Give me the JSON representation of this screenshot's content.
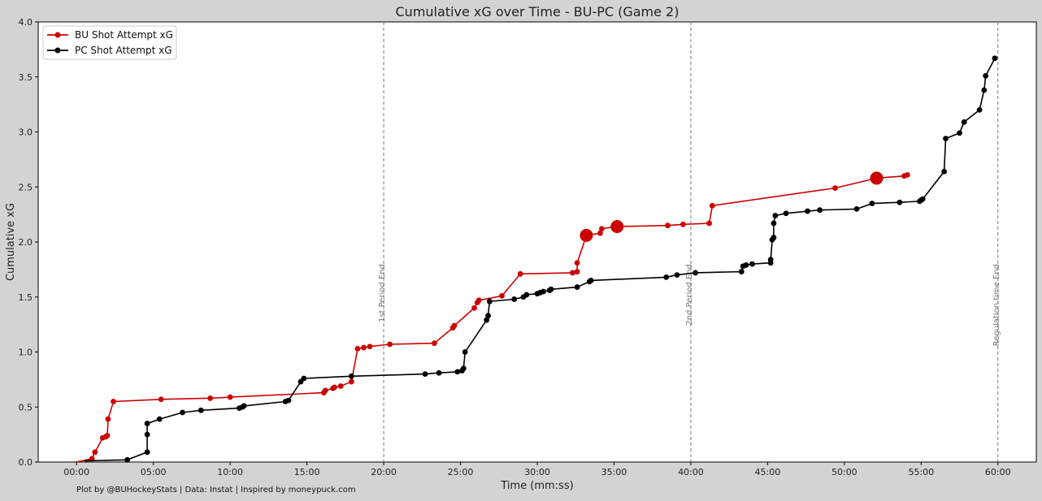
{
  "chart_data": {
    "type": "line",
    "title": "Cumulative xG over Time - BU-PC (Game 2)",
    "xlabel": "Time (mm:ss)",
    "ylabel": "Cumulative xG",
    "xlim": [
      -2.5,
      62.5
    ],
    "ylim": [
      0,
      4.0
    ],
    "x_ticks": [
      0,
      5,
      10,
      15,
      20,
      25,
      30,
      35,
      40,
      45,
      50,
      55,
      60
    ],
    "x_tick_labels": [
      "00:00",
      "05:00",
      "10:00",
      "15:00",
      "20:00",
      "25:00",
      "30:00",
      "35:00",
      "40:00",
      "45:00",
      "50:00",
      "55:00",
      "60:00"
    ],
    "y_ticks": [
      0,
      0.5,
      1.0,
      1.5,
      2.0,
      2.5,
      3.0,
      3.5,
      4.0
    ],
    "y_tick_labels": [
      "0.0",
      "0.5",
      "1.0",
      "1.5",
      "2.0",
      "2.5",
      "3.0",
      "3.5",
      "4.0"
    ],
    "grid": false,
    "legend_position": "top-left",
    "period_markers": [
      {
        "x": 20,
        "label": "1st Period End"
      },
      {
        "x": 40,
        "label": "2nd Period End"
      },
      {
        "x": 60,
        "label": "Regulation time End"
      }
    ],
    "series": [
      {
        "name": "BU Shot Attempt xG",
        "color": "#cc0000",
        "points": [
          [
            0,
            0
          ],
          [
            1.0,
            0.03
          ],
          [
            1.2,
            0.09
          ],
          [
            1.7,
            0.22
          ],
          [
            1.9,
            0.23
          ],
          [
            2.0,
            0.24
          ],
          [
            2.05,
            0.39
          ],
          [
            2.4,
            0.55
          ],
          [
            5.5,
            0.57
          ],
          [
            8.7,
            0.58
          ],
          [
            10.0,
            0.59
          ],
          [
            16.1,
            0.63
          ],
          [
            16.2,
            0.65
          ],
          [
            16.7,
            0.67
          ],
          [
            16.8,
            0.68
          ],
          [
            17.2,
            0.69
          ],
          [
            17.9,
            0.73
          ],
          [
            18.3,
            1.03
          ],
          [
            18.7,
            1.04
          ],
          [
            19.1,
            1.05
          ],
          [
            20.4,
            1.07
          ],
          [
            23.3,
            1.08
          ],
          [
            24.5,
            1.22
          ],
          [
            24.6,
            1.24
          ],
          [
            25.9,
            1.4
          ],
          [
            26.1,
            1.45
          ],
          [
            26.2,
            1.47
          ],
          [
            27.7,
            1.51
          ],
          [
            28.9,
            1.71
          ],
          [
            32.3,
            1.72
          ],
          [
            32.6,
            1.73
          ],
          [
            32.6,
            1.81
          ],
          [
            33.2,
            2.06
          ],
          [
            34.1,
            2.08
          ],
          [
            34.2,
            2.12
          ],
          [
            35.2,
            2.14
          ],
          [
            38.5,
            2.15
          ],
          [
            39.5,
            2.16
          ],
          [
            41.2,
            2.17
          ],
          [
            41.4,
            2.33
          ],
          [
            49.4,
            2.49
          ],
          [
            52.1,
            2.58
          ],
          [
            53.9,
            2.6
          ],
          [
            54.1,
            2.61
          ]
        ],
        "large_markers": [
          [
            33.2,
            2.06
          ],
          [
            35.2,
            2.14
          ],
          [
            52.1,
            2.58
          ]
        ]
      },
      {
        "name": "PC Shot Attempt xG",
        "color": "#000000",
        "points": [
          [
            0.5,
            0.01
          ],
          [
            3.3,
            0.02
          ],
          [
            4.6,
            0.09
          ],
          [
            4.6,
            0.25
          ],
          [
            4.6,
            0.35
          ],
          [
            5.4,
            0.39
          ],
          [
            6.9,
            0.45
          ],
          [
            8.1,
            0.47
          ],
          [
            10.6,
            0.49
          ],
          [
            10.8,
            0.5
          ],
          [
            10.9,
            0.51
          ],
          [
            13.6,
            0.55
          ],
          [
            13.8,
            0.56
          ],
          [
            14.6,
            0.73
          ],
          [
            14.8,
            0.76
          ],
          [
            17.9,
            0.78
          ],
          [
            22.7,
            0.8
          ],
          [
            23.6,
            0.81
          ],
          [
            24.8,
            0.82
          ],
          [
            25.1,
            0.83
          ],
          [
            25.2,
            0.85
          ],
          [
            25.3,
            1.0
          ],
          [
            26.7,
            1.29
          ],
          [
            26.8,
            1.33
          ],
          [
            26.9,
            1.46
          ],
          [
            28.5,
            1.48
          ],
          [
            29.1,
            1.5
          ],
          [
            29.3,
            1.52
          ],
          [
            30.0,
            1.53
          ],
          [
            30.2,
            1.54
          ],
          [
            30.4,
            1.55
          ],
          [
            30.8,
            1.56
          ],
          [
            30.9,
            1.57
          ],
          [
            32.6,
            1.59
          ],
          [
            33.4,
            1.64
          ],
          [
            33.5,
            1.65
          ],
          [
            38.4,
            1.68
          ],
          [
            39.1,
            1.7
          ],
          [
            40.3,
            1.72
          ],
          [
            43.3,
            1.73
          ],
          [
            43.4,
            1.78
          ],
          [
            43.6,
            1.79
          ],
          [
            44.0,
            1.8
          ],
          [
            45.2,
            1.81
          ],
          [
            45.2,
            1.84
          ],
          [
            45.3,
            2.02
          ],
          [
            45.4,
            2.04
          ],
          [
            45.4,
            2.17
          ],
          [
            45.5,
            2.24
          ],
          [
            46.2,
            2.26
          ],
          [
            47.6,
            2.28
          ],
          [
            48.4,
            2.29
          ],
          [
            50.8,
            2.3
          ],
          [
            51.8,
            2.35
          ],
          [
            53.6,
            2.36
          ],
          [
            54.9,
            2.37
          ],
          [
            55.0,
            2.38
          ],
          [
            55.1,
            2.39
          ],
          [
            56.5,
            2.64
          ],
          [
            56.6,
            2.94
          ],
          [
            57.5,
            2.99
          ],
          [
            57.8,
            3.09
          ],
          [
            58.8,
            3.2
          ],
          [
            59.1,
            3.38
          ],
          [
            59.2,
            3.51
          ],
          [
            59.8,
            3.67
          ]
        ],
        "large_markers": []
      }
    ]
  },
  "footer_text": "Plot by @BUHockeyStats | Data: Instat | Inspired by moneypuck.com"
}
